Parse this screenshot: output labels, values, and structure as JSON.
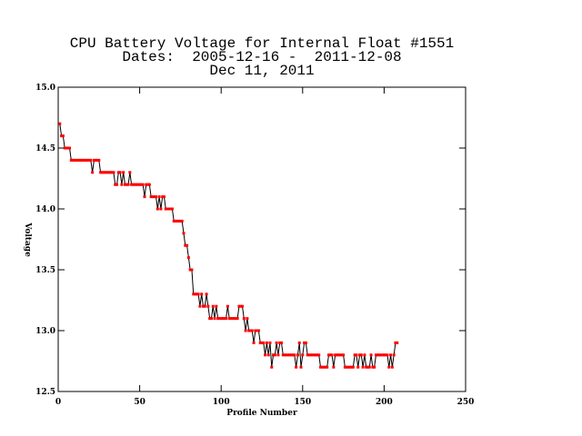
{
  "chart_data": {
    "type": "line",
    "title": "CPU Battery Voltage for Internal Float #1551",
    "subtitle": [
      "Dates:  2005-12-16 -  2011-12-08",
      "Dec 11, 2011"
    ],
    "xlabel": "Profile Number",
    "ylabel": "Voltage",
    "xlim": [
      0,
      250
    ],
    "xticks": [
      0,
      50,
      100,
      150,
      200,
      250
    ],
    "ylim": [
      12.5,
      15.0
    ],
    "yticks": [
      {
        "value": 12.5,
        "label": "12.5"
      },
      {
        "value": 13,
        "label": "13.0"
      },
      {
        "value": 13.5,
        "label": "13.5"
      },
      {
        "value": 14,
        "label": "14.0"
      },
      {
        "value": 14.5,
        "label": "14.5"
      },
      {
        "value": 15,
        "label": "15.0"
      }
    ],
    "line_color": "#000000",
    "marker_color": "#ff0000",
    "x": [
      1,
      2,
      3,
      4,
      5,
      6,
      7,
      8,
      9,
      10,
      11,
      12,
      13,
      14,
      15,
      16,
      17,
      18,
      19,
      20,
      21,
      22,
      23,
      24,
      25,
      26,
      27,
      28,
      29,
      30,
      31,
      32,
      33,
      34,
      35,
      36,
      37,
      38,
      39,
      40,
      41,
      42,
      43,
      44,
      45,
      46,
      47,
      48,
      49,
      50,
      51,
      52,
      53,
      54,
      55,
      56,
      57,
      58,
      59,
      60,
      61,
      62,
      63,
      64,
      65,
      66,
      67,
      68,
      69,
      70,
      71,
      72,
      73,
      74,
      75,
      76,
      77,
      78,
      79,
      80,
      81,
      82,
      83,
      84,
      85,
      86,
      87,
      88,
      89,
      90,
      91,
      92,
      93,
      94,
      95,
      96,
      97,
      98,
      99,
      100,
      101,
      102,
      103,
      104,
      105,
      106,
      107,
      108,
      109,
      110,
      111,
      112,
      113,
      114,
      115,
      116,
      117,
      118,
      119,
      120,
      121,
      122,
      123,
      124,
      125,
      126,
      127,
      128,
      129,
      130,
      131,
      132,
      133,
      134,
      135,
      136,
      137,
      138,
      139,
      140,
      141,
      142,
      143,
      144,
      145,
      146,
      147,
      148,
      149,
      150,
      151,
      152,
      153,
      154,
      155,
      156,
      157,
      158,
      159,
      160,
      161,
      162,
      163,
      164,
      165,
      166,
      167,
      168,
      169,
      170,
      171,
      172,
      173,
      174,
      175,
      176,
      177,
      178,
      179,
      180,
      181,
      182,
      183,
      184,
      185,
      186,
      187,
      188,
      189,
      190,
      191,
      192,
      193,
      194,
      195,
      196,
      197,
      198,
      199,
      200,
      201,
      202,
      203,
      204,
      205,
      206,
      207,
      208
    ],
    "values": [
      14.7,
      14.6,
      14.6,
      14.5,
      14.5,
      14.5,
      14.5,
      14.4,
      14.4,
      14.4,
      14.4,
      14.4,
      14.4,
      14.4,
      14.4,
      14.4,
      14.4,
      14.4,
      14.4,
      14.4,
      14.3,
      14.4,
      14.4,
      14.4,
      14.4,
      14.3,
      14.3,
      14.3,
      14.3,
      14.3,
      14.3,
      14.3,
      14.3,
      14.3,
      14.2,
      14.2,
      14.3,
      14.3,
      14.2,
      14.3,
      14.2,
      14.2,
      14.2,
      14.3,
      14.2,
      14.2,
      14.2,
      14.2,
      14.2,
      14.2,
      14.2,
      14.2,
      14.1,
      14.2,
      14.2,
      14.2,
      14.1,
      14.1,
      14.1,
      14.1,
      14.0,
      14.1,
      14.0,
      14.1,
      14.1,
      14.0,
      14.0,
      14.0,
      14.0,
      14.0,
      13.9,
      13.9,
      13.9,
      13.9,
      13.9,
      13.9,
      13.8,
      13.7,
      13.7,
      13.6,
      13.5,
      13.5,
      13.3,
      13.3,
      13.3,
      13.3,
      13.2,
      13.3,
      13.2,
      13.2,
      13.3,
      13.2,
      13.1,
      13.1,
      13.2,
      13.1,
      13.2,
      13.1,
      13.1,
      13.1,
      13.1,
      13.1,
      13.1,
      13.2,
      13.1,
      13.1,
      13.1,
      13.1,
      13.1,
      13.1,
      13.2,
      13.2,
      13.2,
      13.1,
      13.0,
      13.1,
      13.0,
      13.0,
      13.0,
      12.9,
      13.0,
      13.0,
      13.0,
      12.9,
      12.9,
      12.9,
      12.8,
      12.9,
      12.8,
      12.9,
      12.7,
      12.8,
      12.8,
      12.9,
      12.8,
      12.9,
      12.9,
      12.8,
      12.8,
      12.8,
      12.8,
      12.8,
      12.8,
      12.8,
      12.8,
      12.7,
      12.8,
      12.9,
      12.7,
      12.8,
      12.9,
      12.9,
      12.8,
      12.8,
      12.8,
      12.8,
      12.8,
      12.8,
      12.8,
      12.8,
      12.7,
      12.7,
      12.7,
      12.7,
      12.7,
      12.8,
      12.8,
      12.8,
      12.7,
      12.8,
      12.8,
      12.8,
      12.8,
      12.8,
      12.8,
      12.7,
      12.7,
      12.7,
      12.7,
      12.7,
      12.7,
      12.8,
      12.8,
      12.7,
      12.8,
      12.8,
      12.7,
      12.8,
      12.7,
      12.7,
      12.7,
      12.8,
      12.7,
      12.7,
      12.8,
      12.8,
      12.8,
      12.8,
      12.8,
      12.8,
      12.8,
      12.8,
      12.7,
      12.8,
      12.7,
      12.8,
      12.9,
      12.9
    ]
  }
}
